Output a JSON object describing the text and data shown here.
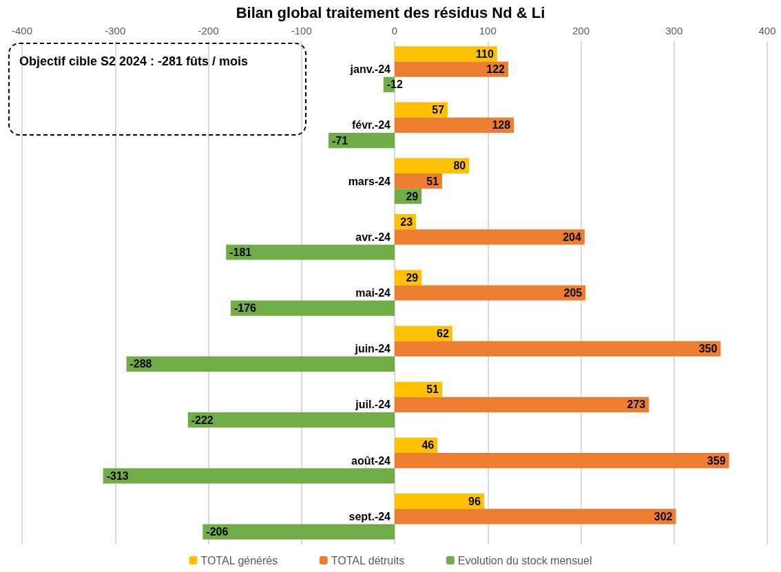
{
  "chart_data": {
    "type": "bar",
    "orientation": "horizontal",
    "title": "Bilan global traitement des résidus Nd & Li",
    "categories": [
      "janv.-24",
      "févr.-24",
      "mars-24",
      "avr.-24",
      "mai-24",
      "juin-24",
      "juil.-24",
      "août-24",
      "sept.-24"
    ],
    "series": [
      {
        "name": "TOTAL générés",
        "color": "#ffc000",
        "values": [
          110,
          57,
          80,
          23,
          29,
          62,
          51,
          46,
          96
        ]
      },
      {
        "name": "TOTAL détruits",
        "color": "#ed7d31",
        "values": [
          122,
          128,
          51,
          204,
          205,
          350,
          273,
          359,
          302
        ]
      },
      {
        "name": "Evolution du stock mensuel",
        "color": "#70ad47",
        "values": [
          -12,
          -71,
          29,
          -181,
          -176,
          -288,
          -222,
          -313,
          -206
        ]
      }
    ],
    "xlim": [
      -400,
      400
    ],
    "xticks": [
      -400,
      -300,
      -200,
      -100,
      0,
      100,
      200,
      300,
      400
    ],
    "grid": "x",
    "legend": "bottom",
    "data_labels": true,
    "annotations": [
      "Objectif cible S2 2024 : -281 fûts / mois"
    ]
  }
}
